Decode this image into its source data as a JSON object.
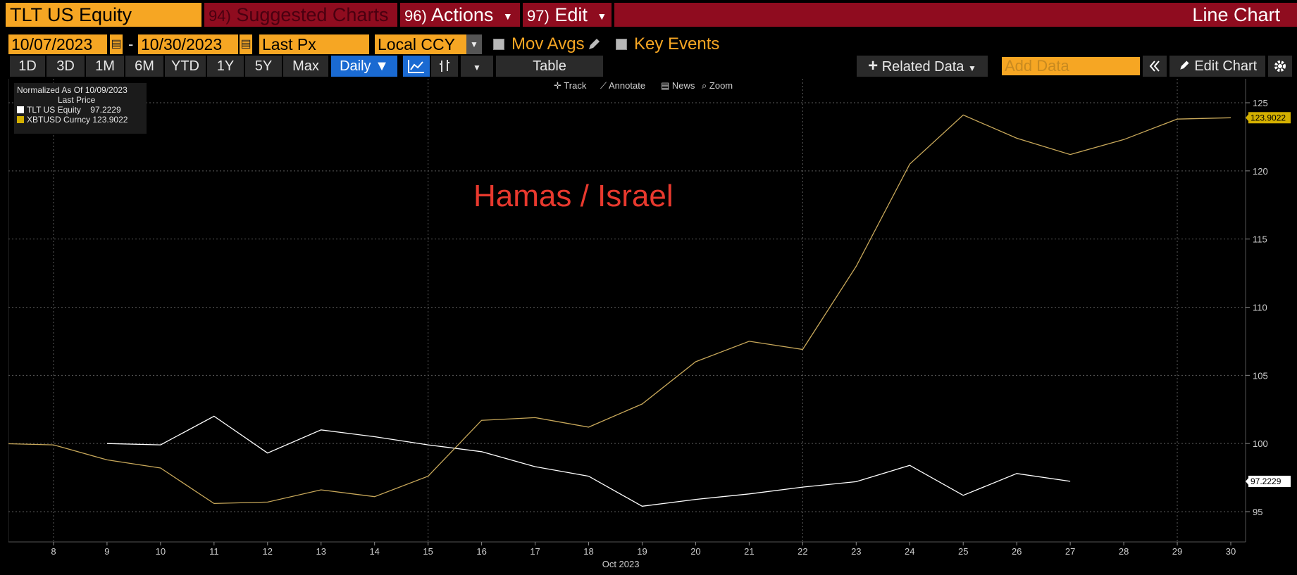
{
  "toolbar_row1": {
    "ticker": "TLT US Equity",
    "suggested_num": "94)",
    "suggested_label": "Suggested Charts",
    "actions_num": "96)",
    "actions_label": "Actions",
    "edit_num": "97)",
    "edit_label": "Edit",
    "title": "Line Chart"
  },
  "toolbar_row2": {
    "start_date": "10/07/2023",
    "separator": "-",
    "end_date": "10/30/2023",
    "field": "Last Px",
    "currency": "Local CCY",
    "mov_avgs": "Mov Avgs",
    "key_events": "Key Events"
  },
  "toolbar_row3": {
    "ranges": [
      "1D",
      "3D",
      "1M",
      "6M",
      "YTD",
      "1Y",
      "5Y",
      "Max"
    ],
    "period": "Daily",
    "table": "Table",
    "related_data": "Related Data",
    "add_data_placeholder": "Add Data",
    "edit_chart": "Edit Chart"
  },
  "chart_tools": [
    "Track",
    "Annotate",
    "News",
    "Zoom"
  ],
  "legend": {
    "normalized": "Normalized As Of 10/09/2023",
    "field": "Last Price",
    "items": [
      {
        "name": "TLT US Equity",
        "value": "97.2229",
        "color": "#ffffff"
      },
      {
        "name": "XBTUSD Curncy",
        "value": "123.9022",
        "color": "#d4b000"
      }
    ]
  },
  "annotation": "Hamas / Israel",
  "colors": {
    "accent_orange": "#f6a623",
    "bar_red": "#8f0c1f",
    "tlt_line": "#ffffff",
    "xbt_line": "#c8a85a",
    "annotation": "#e8392e",
    "selected_blue": "#1a6ad2"
  },
  "chart_data": {
    "type": "line",
    "x": [
      7,
      8,
      9,
      10,
      11,
      12,
      13,
      14,
      15,
      16,
      17,
      18,
      19,
      20,
      21,
      22,
      23,
      24,
      25,
      26,
      27,
      28,
      29,
      30
    ],
    "xlabel": "Oct 2023",
    "xticks": [
      8,
      9,
      10,
      11,
      12,
      13,
      14,
      15,
      16,
      17,
      18,
      19,
      20,
      21,
      22,
      23,
      24,
      25,
      26,
      27,
      28,
      29,
      30
    ],
    "ylim": [
      92.5,
      126.5
    ],
    "yticks": [
      95,
      100,
      105,
      110,
      115,
      120,
      125
    ],
    "grid": true,
    "legend_position": "top-left",
    "series": [
      {
        "name": "TLT US Equity",
        "color": "#ffffff",
        "last_label": "97.2229",
        "values": [
          null,
          null,
          100,
          99.9,
          102,
          99.3,
          101,
          100.5,
          99.9,
          99.4,
          98.3,
          97.6,
          95.4,
          95.9,
          96.3,
          96.8,
          97.2,
          98.4,
          96.2,
          97.8,
          97.2229,
          null,
          null,
          null
        ]
      },
      {
        "name": "XBTUSD Curncy",
        "color": "#c8a85a",
        "last_label": "123.9022",
        "values": [
          100,
          99.9,
          98.8,
          98.2,
          95.6,
          95.7,
          96.6,
          96.1,
          97.6,
          101.7,
          101.9,
          101.2,
          102.9,
          106,
          107.5,
          106.9,
          113,
          120.5,
          124.1,
          122.4,
          121.2,
          122.3,
          123.8,
          123.9022
        ]
      }
    ]
  }
}
